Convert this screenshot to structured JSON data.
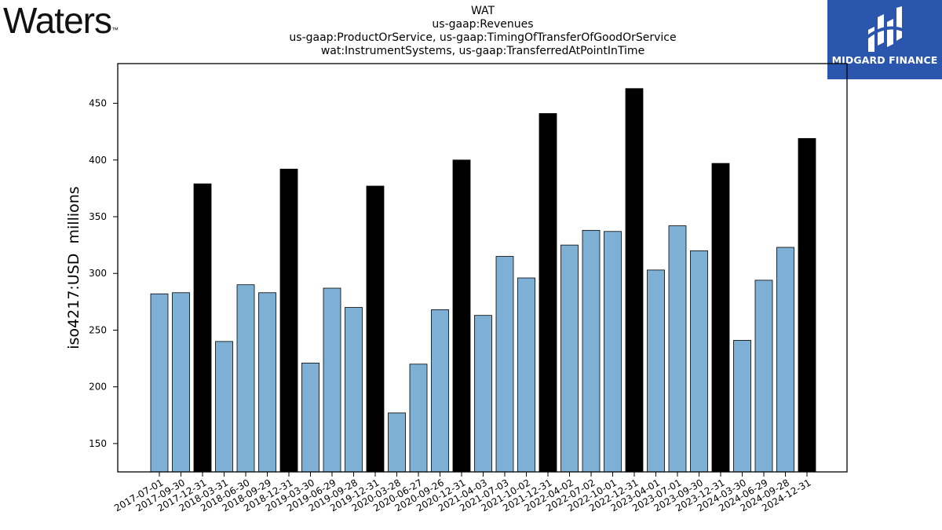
{
  "header": {
    "brand_logo_text": "Waters",
    "brand_logo_tm": "™",
    "title_lines": [
      "WAT",
      "us-gaap:Revenues",
      "us-gaap:ProductOrService, us-gaap:TimingOfTransferOfGoodOrService",
      "wat:InstrumentSystems, us-gaap:TransferredAtPointInTime"
    ],
    "badge_text": "MIDGARD FINANCE",
    "badge_color": "#2a57ad"
  },
  "chart_data": {
    "type": "bar",
    "title": "WAT",
    "subtitle": "us-gaap:Revenues | us-gaap:ProductOrService, us-gaap:TimingOfTransferOfGoodOrService | wat:InstrumentSystems, us-gaap:TransferredAtPointInTime",
    "xlabel": "",
    "ylabel": "iso4217:USD  millions",
    "ylim": [
      125,
      485
    ],
    "yticks": [
      150,
      200,
      250,
      300,
      350,
      400,
      450
    ],
    "grid": false,
    "colors": {
      "quarter": "#7eb0d5",
      "year_end": "#000000",
      "edge": "#000000"
    },
    "categories": [
      "2017-07-01",
      "2017-09-30",
      "2017-12-31",
      "2018-03-31",
      "2018-06-30",
      "2018-09-29",
      "2018-12-31",
      "2019-03-30",
      "2019-06-29",
      "2019-09-28",
      "2019-12-31",
      "2020-03-28",
      "2020-06-27",
      "2020-09-26",
      "2020-12-31",
      "2021-04-03",
      "2021-07-03",
      "2021-10-02",
      "2021-12-31",
      "2022-04-02",
      "2022-07-02",
      "2022-10-01",
      "2022-12-31",
      "2023-04-01",
      "2023-07-01",
      "2023-09-30",
      "2023-12-31",
      "2024-03-30",
      "2024-06-29",
      "2024-09-28",
      "2024-12-31"
    ],
    "values": [
      282,
      283,
      379,
      240,
      290,
      283,
      392,
      221,
      287,
      270,
      377,
      177,
      220,
      268,
      400,
      263,
      315,
      296,
      441,
      325,
      338,
      337,
      463,
      303,
      342,
      320,
      397,
      241,
      294,
      323,
      419
    ],
    "year_end": [
      false,
      false,
      true,
      false,
      false,
      false,
      true,
      false,
      false,
      false,
      true,
      false,
      false,
      false,
      true,
      false,
      false,
      false,
      true,
      false,
      false,
      false,
      true,
      false,
      false,
      false,
      true,
      false,
      false,
      false,
      true
    ]
  }
}
